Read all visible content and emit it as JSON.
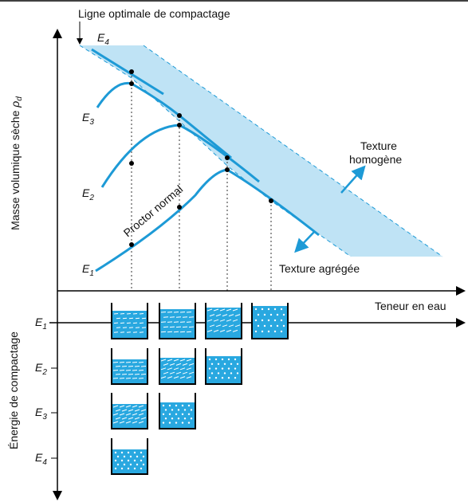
{
  "title": "Ligne optimale de compactage",
  "y_axis": {
    "label": "Masse volumique sèche ",
    "symbol": "ρ",
    "index": "d"
  },
  "curves": [
    {
      "symbol": "E",
      "index": "4"
    },
    {
      "symbol": "E",
      "index": "3"
    },
    {
      "symbol": "E",
      "index": "2"
    },
    {
      "symbol": "E",
      "index": "1"
    }
  ],
  "curve_label": "Proctor normal",
  "annotations": [
    "Texture",
    "homogène",
    "Texture agrégée"
  ],
  "x_axis": {
    "label": "Teneur en eau"
  },
  "energy_axis": {
    "label": "Énergie de compactage",
    "levels": [
      {
        "symbol": "E",
        "index": "1"
      },
      {
        "symbol": "E",
        "index": "2"
      },
      {
        "symbol": "E",
        "index": "3"
      },
      {
        "symbol": "E",
        "index": "4"
      }
    ]
  }
}
